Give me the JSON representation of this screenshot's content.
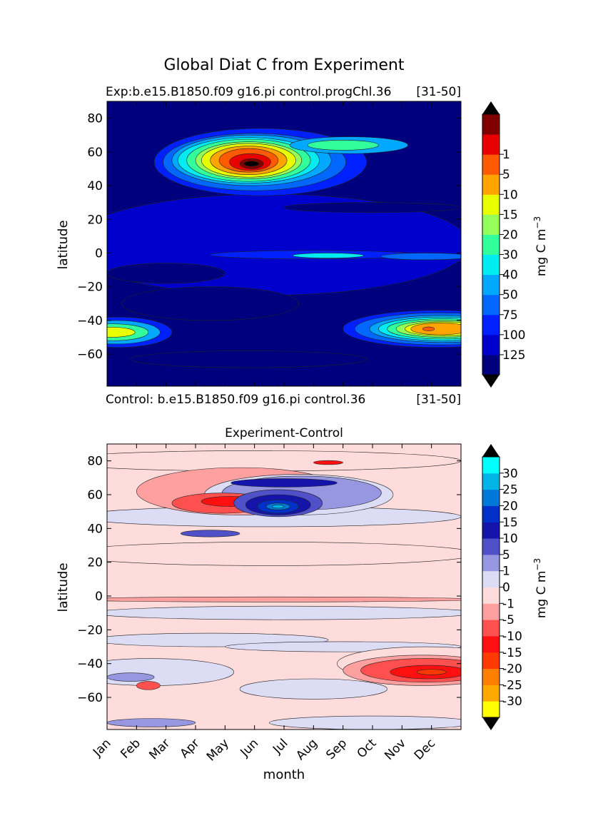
{
  "figure": {
    "suptitle": "Global Diat C from Experiment"
  },
  "chart_data": [
    {
      "type": "heatmap",
      "name": "experiment",
      "title": "",
      "left_title": "Exp:b.e15.B1850.f09 g16.pi control.progChl.36",
      "right_title": "[31-50]",
      "bottom_left_label": "Control: b.e15.B1850.f09 g16.pi control.36",
      "bottom_right_label": "[31-50]",
      "xlabel": "",
      "ylabel": "latitude",
      "xlim": [
        0,
        12
      ],
      "ylim": [
        -79,
        90
      ],
      "yticks": [
        80,
        60,
        40,
        20,
        0,
        -20,
        -40,
        -60
      ],
      "ytick_labels": [
        "80",
        "60",
        "40",
        "20",
        "0",
        "−20",
        "−40",
        "−60"
      ],
      "xticks": [
        0,
        1,
        2,
        3,
        4,
        5,
        6,
        7,
        8,
        9,
        10,
        11
      ],
      "show_xtick_labels": false,
      "colorbar": {
        "label": "mg C m",
        "label_sup": "−3",
        "levels": [
          "1",
          "5",
          "10",
          "15",
          "20",
          "30",
          "40",
          "50",
          "75",
          "100",
          "125"
        ],
        "colors": [
          "#00007f",
          "#0000cd",
          "#0020ff",
          "#0068ff",
          "#00a8ff",
          "#00ecf0",
          "#32ff9c",
          "#94ff5a",
          "#e8ff00",
          "#ffa400",
          "#ff5a00",
          "#e80000",
          "#800000"
        ],
        "over_color": "#000000",
        "under_color": "#000000"
      },
      "regions": [
        {
          "x": 5.5,
          "y": 5,
          "rx": 6.8,
          "ry": 30,
          "level": 1
        },
        {
          "x": 3.5,
          "y": -30,
          "rx": 3,
          "ry": 10,
          "level": 0
        },
        {
          "x": 2.0,
          "y": -12,
          "rx": 2,
          "ry": 6,
          "level": 0
        },
        {
          "x": 4.8,
          "y": -63,
          "rx": 4,
          "ry": 5,
          "level": 0
        },
        {
          "x": 9.0,
          "y": 27,
          "rx": 3,
          "ry": 3,
          "level": 0
        },
        {
          "x": 7.0,
          "y": -1,
          "rx": 3.5,
          "ry": 2.5,
          "level": 2
        },
        {
          "x": 10.8,
          "y": -2,
          "rx": 1.5,
          "ry": 2,
          "level": 3
        },
        {
          "x": 7.5,
          "y": -1.5,
          "rx": 1.2,
          "ry": 1.5,
          "level": 5
        },
        {
          "x": 5.2,
          "y": 54,
          "rx": 3.6,
          "ry": 20,
          "level": 2
        },
        {
          "x": 5.0,
          "y": 54,
          "rx": 3.1,
          "ry": 17,
          "level": 3
        },
        {
          "x": 4.9,
          "y": 55,
          "rx": 2.7,
          "ry": 15,
          "level": 4
        },
        {
          "x": 4.8,
          "y": 55,
          "rx": 2.4,
          "ry": 13.5,
          "level": 5
        },
        {
          "x": 4.8,
          "y": 55,
          "rx": 2.1,
          "ry": 12.5,
          "level": 6
        },
        {
          "x": 4.8,
          "y": 55,
          "rx": 1.8,
          "ry": 11,
          "level": 7
        },
        {
          "x": 4.8,
          "y": 55,
          "rx": 1.6,
          "ry": 10,
          "level": 8
        },
        {
          "x": 4.8,
          "y": 55,
          "rx": 1.3,
          "ry": 8.5,
          "level": 9
        },
        {
          "x": 4.8,
          "y": 55,
          "rx": 1.0,
          "ry": 7,
          "level": 10
        },
        {
          "x": 4.85,
          "y": 54,
          "rx": 0.7,
          "ry": 5,
          "level": 11
        },
        {
          "x": 4.9,
          "y": 53,
          "rx": 0.4,
          "ry": 3,
          "level": 12
        },
        {
          "x": 4.9,
          "y": 53,
          "rx": 0.25,
          "ry": 1.5,
          "level": 13
        },
        {
          "x": 8.2,
          "y": 64,
          "rx": 2.0,
          "ry": 5,
          "level": 4
        },
        {
          "x": 8.0,
          "y": 64,
          "rx": 1.2,
          "ry": 3,
          "level": 6
        },
        {
          "x": 0.4,
          "y": -47,
          "rx": 1.8,
          "ry": 9,
          "level": 2
        },
        {
          "x": 0.3,
          "y": -47,
          "rx": 1.5,
          "ry": 7,
          "level": 4
        },
        {
          "x": 0.2,
          "y": -47,
          "rx": 1.2,
          "ry": 5,
          "level": 6
        },
        {
          "x": 0.15,
          "y": -47,
          "rx": 0.8,
          "ry": 3,
          "level": 8
        },
        {
          "x": 11.2,
          "y": -45,
          "rx": 3.2,
          "ry": 11,
          "level": 2
        },
        {
          "x": 11.3,
          "y": -45,
          "rx": 2.9,
          "ry": 9.5,
          "level": 3
        },
        {
          "x": 11.4,
          "y": -45,
          "rx": 2.5,
          "ry": 8,
          "level": 4
        },
        {
          "x": 11.4,
          "y": -45,
          "rx": 2.2,
          "ry": 7,
          "level": 5
        },
        {
          "x": 11.4,
          "y": -45,
          "rx": 1.9,
          "ry": 6,
          "level": 6
        },
        {
          "x": 11.4,
          "y": -45,
          "rx": 1.6,
          "ry": 5,
          "level": 7
        },
        {
          "x": 11.4,
          "y": -45,
          "rx": 1.3,
          "ry": 4.2,
          "level": 8
        },
        {
          "x": 11.3,
          "y": -45,
          "rx": 1.0,
          "ry": 3.5,
          "level": 9
        },
        {
          "x": 10.9,
          "y": -45,
          "rx": 0.2,
          "ry": 1.2,
          "level": 10
        }
      ]
    },
    {
      "type": "heatmap",
      "name": "difference",
      "title": "Experiment-Control",
      "xlabel": "month",
      "ylabel": "latitude",
      "xlim": [
        0,
        12
      ],
      "ylim": [
        -79,
        90
      ],
      "yticks": [
        80,
        60,
        40,
        20,
        0,
        -20,
        -40,
        -60
      ],
      "ytick_labels": [
        "80",
        "60",
        "40",
        "20",
        "0",
        "−20",
        "−40",
        "−60"
      ],
      "xticks": [
        0,
        1,
        2,
        3,
        4,
        5,
        6,
        7,
        8,
        9,
        10,
        11
      ],
      "categories": [
        "Jan",
        "Feb",
        "Mar",
        "Apr",
        "May",
        "Jun",
        "Jul",
        "Aug",
        "Sep",
        "Oct",
        "Nov",
        "Dec"
      ],
      "colorbar": {
        "label": "mg C m",
        "label_sup": "−3",
        "levels": [
          "30",
          "25",
          "20",
          "15",
          "10",
          "5",
          "1",
          "0",
          "-1",
          "-5",
          "-10",
          "-15",
          "-20",
          "-25",
          "-30"
        ],
        "colors": [
          "#ffff00",
          "#ffa800",
          "#ff7f00",
          "#ff3a00",
          "#ff1010",
          "#ff5050",
          "#ffa0a0",
          "#ffdcdc",
          "#dcdcf5",
          "#9696e1",
          "#5050c8",
          "#1414aa",
          "#0030c8",
          "#0078d7",
          "#00b4e6",
          "#00ffff"
        ],
        "over_color": "#000000",
        "under_color": "#000000"
      },
      "regions": [
        {
          "x": 5.5,
          "y": 25,
          "rx": 7,
          "ry": 7,
          "level": 7
        },
        {
          "x": 5.0,
          "y": 80,
          "rx": 7,
          "ry": 6,
          "level": 7
        },
        {
          "x": 5.5,
          "y": -2,
          "rx": 7,
          "ry": 1.5,
          "level": 6
        },
        {
          "x": 6.0,
          "y": -10,
          "rx": 6.5,
          "ry": 4,
          "level": 8
        },
        {
          "x": 3.5,
          "y": -26,
          "rx": 4,
          "ry": 4,
          "level": 8
        },
        {
          "x": 8.0,
          "y": -30,
          "rx": 4,
          "ry": 3,
          "level": 8
        },
        {
          "x": 1.5,
          "y": -45,
          "rx": 2.8,
          "ry": 8,
          "level": 8
        },
        {
          "x": 7.0,
          "y": -55,
          "rx": 2.5,
          "ry": 6,
          "level": 8
        },
        {
          "x": 9.0,
          "y": -75,
          "rx": 3.5,
          "ry": 4,
          "level": 8
        },
        {
          "x": 0.8,
          "y": -48,
          "rx": 0.8,
          "ry": 2.5,
          "level": 9
        },
        {
          "x": 1.5,
          "y": -75,
          "rx": 1.5,
          "ry": 2.5,
          "level": 9
        },
        {
          "x": 10.8,
          "y": -40,
          "rx": 3.0,
          "ry": 10,
          "level": 7
        },
        {
          "x": 10.7,
          "y": -44,
          "rx": 2.7,
          "ry": 9,
          "level": 6
        },
        {
          "x": 10.8,
          "y": -44,
          "rx": 2.2,
          "ry": 7,
          "level": 5
        },
        {
          "x": 10.9,
          "y": -45,
          "rx": 1.3,
          "ry": 4,
          "level": 4
        },
        {
          "x": 11.0,
          "y": -45,
          "rx": 0.5,
          "ry": 1.6,
          "level": 3
        },
        {
          "x": 1.4,
          "y": -53,
          "rx": 0.4,
          "ry": 2.5,
          "level": 5
        },
        {
          "x": 5.5,
          "y": 47,
          "rx": 6.5,
          "ry": 6,
          "level": 8
        },
        {
          "x": 4.5,
          "y": 62,
          "rx": 3.5,
          "ry": 14,
          "level": 6
        },
        {
          "x": 6.5,
          "y": 60,
          "rx": 3.2,
          "ry": 12,
          "level": 8
        },
        {
          "x": 6.6,
          "y": 61,
          "rx": 2.7,
          "ry": 10,
          "level": 9
        },
        {
          "x": 3.9,
          "y": 55,
          "rx": 1.7,
          "ry": 6,
          "level": 5
        },
        {
          "x": 4.2,
          "y": 56,
          "rx": 1.0,
          "ry": 3,
          "level": 4
        },
        {
          "x": 5.8,
          "y": 55,
          "rx": 1.5,
          "ry": 8,
          "level": 10
        },
        {
          "x": 5.8,
          "y": 54,
          "rx": 1.1,
          "ry": 6,
          "level": 11
        },
        {
          "x": 5.8,
          "y": 53,
          "rx": 0.7,
          "ry": 4,
          "level": 12
        },
        {
          "x": 5.8,
          "y": 53,
          "rx": 0.4,
          "ry": 2,
          "level": 13
        },
        {
          "x": 5.8,
          "y": 53,
          "rx": 0.2,
          "ry": 1,
          "level": 14
        },
        {
          "x": 6.0,
          "y": 67,
          "rx": 1.8,
          "ry": 2.5,
          "level": 11
        },
        {
          "x": 7.5,
          "y": 79,
          "rx": 0.5,
          "ry": 1.2,
          "level": 4
        },
        {
          "x": 3.5,
          "y": 37,
          "rx": 1.0,
          "ry": 2,
          "level": 10
        }
      ]
    }
  ]
}
